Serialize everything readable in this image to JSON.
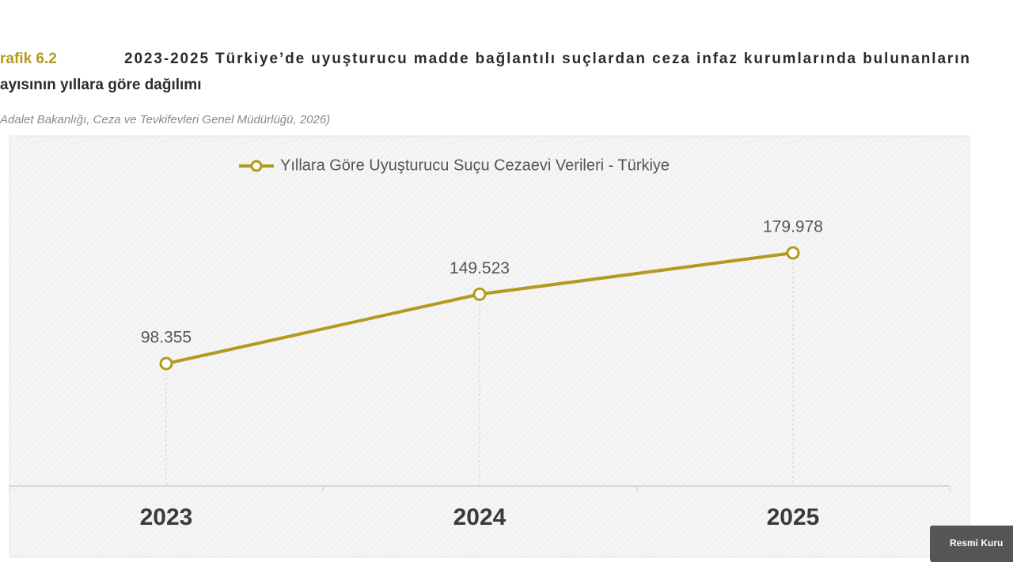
{
  "header": {
    "label": "rafik 6.2",
    "title_lines": [
      "2023-2025 Türkiye’de uyuşturucu madde bağlantılı suçlardan ceza infaz kurumlarında bulunanların",
      "ayısının yıllara göre dağılımı"
    ],
    "source": "Adalet Bakanlığı, Ceza ve Tevkifevleri Genel Müdürlüğü, 2026)"
  },
  "chart_data": {
    "type": "line",
    "categories": [
      "2023",
      "2024",
      "2025"
    ],
    "series": [
      {
        "name": "Yıllara Göre Uyuşturucu Suçu Cezaevi Verileri - Türkiye",
        "color": "#b39a1e",
        "values": [
          98355,
          149523,
          179978
        ],
        "value_labels": [
          "98.355",
          "149.523",
          "179.978"
        ]
      }
    ]
  },
  "badge": "Resmi Kuru"
}
